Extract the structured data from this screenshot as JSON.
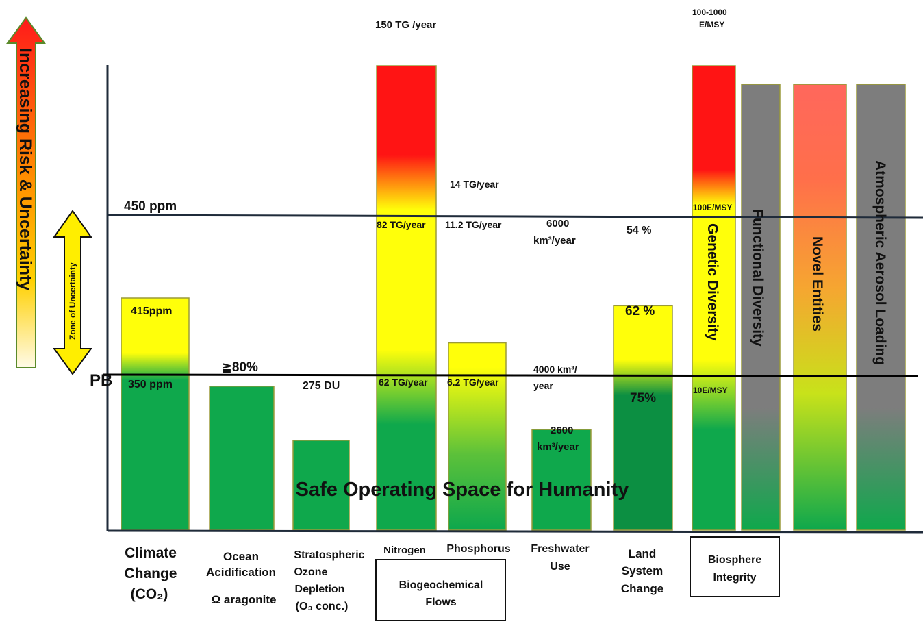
{
  "colors": {
    "green": "#0fa84c",
    "dark_green": "#0c8f42",
    "yellow": "#ffff0a",
    "red": "#ff1414",
    "salmon": "#ff6464",
    "orange": "#f6a531",
    "lime": "#c8e21a",
    "gray": "#7d7d7d",
    "bar_border": "#9a9a3a",
    "axis": "#1f2b3a"
  },
  "risk_arrow_label": "Increasing Risk & Uncertainty",
  "zone_label": "Zone of Uncertainty",
  "pb_label": "PB",
  "threshold_450_label": "450 ppm",
  "safe_space_label": "Safe Operating Space for Humanity",
  "chart_data": {
    "type": "bar",
    "categories": [
      "Climate Change (CO2)",
      "Ocean Acidification Ω aragonite",
      "Stratospheric Ozone Depletion (O3 conc.)",
      "Nitrogen",
      "Phosphorus",
      "Freshwater Use",
      "Land System Change",
      "Genetic Diversity",
      "Functional Diversity",
      "Novel Entities",
      "Atmospheric Aerosol Loading"
    ],
    "values_relative_to_boundary": [
      1.5,
      0.93,
      0.58,
      3.0,
      1.21,
      0.65,
      1.45,
      3.0,
      2.88,
      2.88,
      2.88
    ],
    "boundary_level": 1.0,
    "upper_uncertainty_level": 1.71,
    "ylim": [
      0,
      3.1
    ],
    "value_labels": {
      "climate_top": "415ppm",
      "climate_pb": "350 ppm",
      "ocean": "≧80%",
      "ozone": "275 DU",
      "nitrogen_top": "150 TG /year",
      "nitrogen_upper": "82 TG/year",
      "nitrogen_pb": "62 TG/year",
      "phosphorus_top": "14 TG/year",
      "phosphorus_upper": "11.2 TG/year",
      "phosphorus_pb": "6.2 TG/year",
      "freshwater_upper_1": "6000",
      "freshwater_upper_2": "km³/year",
      "freshwater_pb_1": "4000 km³/",
      "freshwater_pb_2": "year",
      "freshwater_bar_1": "2600",
      "freshwater_bar_2": "km³/year",
      "land_upper": "54 %",
      "land_top": "62 %",
      "land_pb": "75%",
      "genetic_top_1": "100-1000",
      "genetic_top_2": "E/MSY",
      "genetic_upper": "100E/MSY",
      "genetic_pb": "10E/MSY",
      "unknown_1": "??",
      "unknown_2": "??",
      "unknown_3": "??"
    },
    "vertical_bar_labels": {
      "genetic": "Genetic Diversity",
      "functional": "Functional Diversity",
      "novel": "Novel Entities",
      "aerosol": "Atmospheric Aerosol Loading"
    },
    "category_labels": {
      "climate_1": "Climate",
      "climate_2": "Change",
      "climate_3": "(CO₂)",
      "ocean_1": "Ocean",
      "ocean_2": "Acidification",
      "ocean_3": "Ω aragonite",
      "ozone_1": "Stratospheric",
      "ozone_2": "Ozone",
      "ozone_3": "Depletion",
      "ozone_4": "(O₃ conc.)",
      "nitrogen": "Nitrogen",
      "phosphorus": "Phosphorus",
      "freshwater_1": "Freshwater",
      "freshwater_2": "Use",
      "land_1": "Land",
      "land_2": "System",
      "land_3": "Change"
    },
    "group_labels": {
      "biogeochemical_1": "Biogeochemical",
      "biogeochemical_2": "Flows",
      "biosphere_1": "Biosphere",
      "biosphere_2": "Integrity"
    }
  }
}
